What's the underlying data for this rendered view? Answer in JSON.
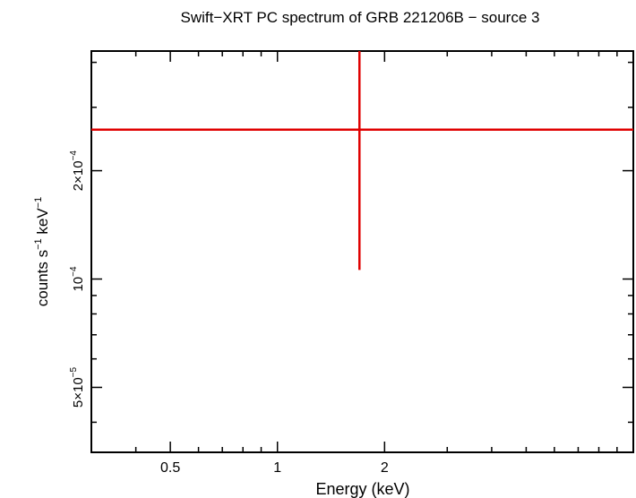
{
  "chart_data": {
    "type": "scatter",
    "title": "Swift−XRT PC spectrum of GRB 221206B − source 3",
    "xlabel": "Energy (keV)",
    "ylabel": "counts s⁻¹ keV⁻¹",
    "x_scale": "log",
    "y_scale": "log",
    "xlim": [
      0.3,
      10
    ],
    "ylim": [
      3.3e-05,
      0.00043
    ],
    "grid": false,
    "x_ticks": [
      {
        "value": 0.5,
        "label": "0.5"
      },
      {
        "value": 1,
        "label": "1"
      },
      {
        "value": 2,
        "label": "2"
      }
    ],
    "y_ticks": [
      {
        "value": 5e-05,
        "mantissa": "5×10",
        "exponent": "−5"
      },
      {
        "value": 0.0001,
        "mantissa": "10",
        "exponent": "−4"
      },
      {
        "value": 0.0002,
        "mantissa": "2×10",
        "exponent": "−4"
      }
    ],
    "series": [
      {
        "color": "#e00000",
        "points": [
          {
            "x": 1.7,
            "x_err": [
              0.3,
              10
            ],
            "y": 0.00026,
            "y_err": [
              0.000106,
              0.00043
            ]
          }
        ]
      }
    ]
  }
}
